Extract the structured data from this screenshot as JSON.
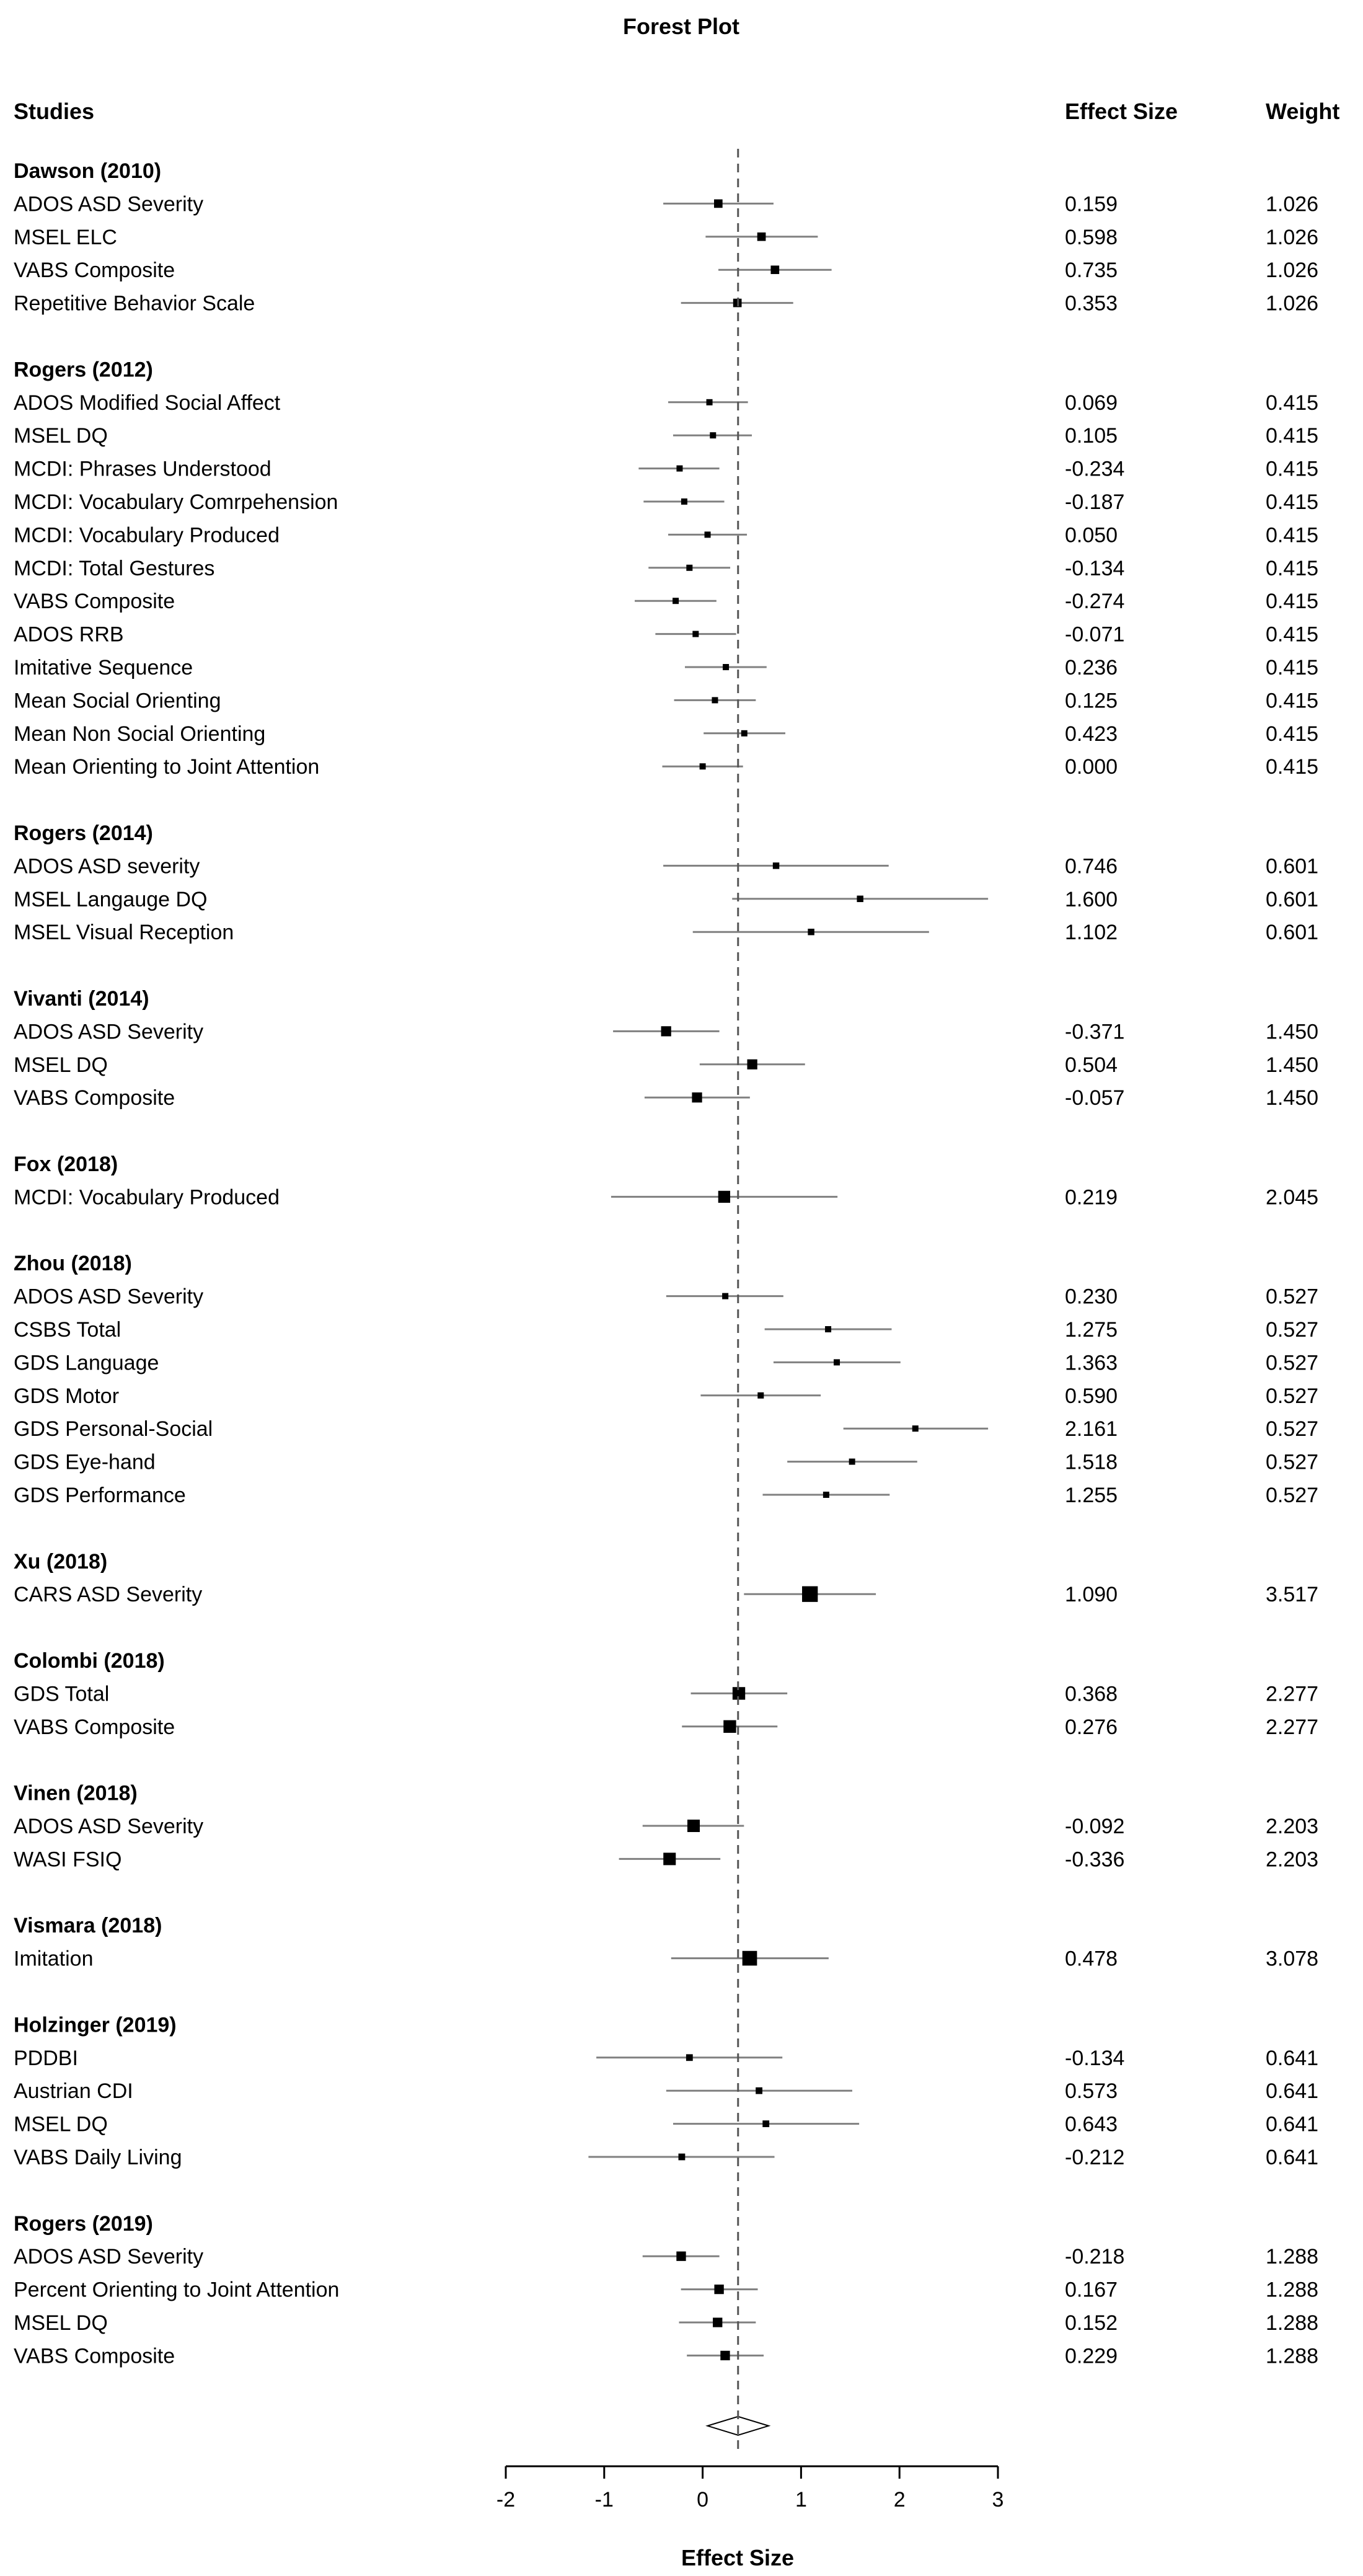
{
  "chart_data": {
    "type": "forest",
    "title": "Forest Plot",
    "xlabel": "Effect Size",
    "columns": {
      "studies": "Studies",
      "effect": "Effect Size",
      "weight": "Weight"
    },
    "xlim": [
      -2,
      3
    ],
    "ticks": [
      "-2",
      "-1",
      "0",
      "1",
      "2",
      "3"
    ],
    "pooled_estimate": 0.36,
    "pooled_ci": [
      0.05,
      0.67
    ],
    "colors": {
      "ink": "#000000",
      "ci_line": "#808080",
      "reference": "#555555"
    },
    "groups": [
      {
        "name": "Dawson (2010)",
        "rows": [
          {
            "label": "ADOS ASD Severity",
            "es": 0.159,
            "es_text": "0.159",
            "weight": 1.026,
            "weight_text": "1.026",
            "lo": -0.4,
            "hi": 0.72
          },
          {
            "label": "MSEL ELC",
            "es": 0.598,
            "es_text": "0.598",
            "weight": 1.026,
            "weight_text": "1.026",
            "lo": 0.03,
            "hi": 1.17
          },
          {
            "label": "VABS Composite",
            "es": 0.735,
            "es_text": "0.735",
            "weight": 1.026,
            "weight_text": "1.026",
            "lo": 0.16,
            "hi": 1.31
          },
          {
            "label": "Repetitive Behavior Scale",
            "es": 0.353,
            "es_text": "0.353",
            "weight": 1.026,
            "weight_text": "1.026",
            "lo": -0.22,
            "hi": 0.92
          }
        ]
      },
      {
        "name": "Rogers (2012)",
        "rows": [
          {
            "label": "ADOS Modified Social Affect",
            "es": 0.069,
            "es_text": "0.069",
            "weight": 0.415,
            "weight_text": "0.415",
            "lo": -0.35,
            "hi": 0.46
          },
          {
            "label": "MSEL DQ",
            "es": 0.105,
            "es_text": "0.105",
            "weight": 0.415,
            "weight_text": "0.415",
            "lo": -0.3,
            "hi": 0.5
          },
          {
            "label": "MCDI: Phrases Understood",
            "es": -0.234,
            "es_text": "-0.234",
            "weight": 0.415,
            "weight_text": "0.415",
            "lo": -0.65,
            "hi": 0.17
          },
          {
            "label": "MCDI: Vocabulary Comrpehension",
            "es": -0.187,
            "es_text": "-0.187",
            "weight": 0.415,
            "weight_text": "0.415",
            "lo": -0.6,
            "hi": 0.22
          },
          {
            "label": "MCDI: Vocabulary Produced",
            "es": 0.05,
            "es_text": "0.050",
            "weight": 0.415,
            "weight_text": "0.415",
            "lo": -0.35,
            "hi": 0.45
          },
          {
            "label": "MCDI: Total Gestures",
            "es": -0.134,
            "es_text": "-0.134",
            "weight": 0.415,
            "weight_text": "0.415",
            "lo": -0.55,
            "hi": 0.28
          },
          {
            "label": "VABS Composite",
            "es": -0.274,
            "es_text": "-0.274",
            "weight": 0.415,
            "weight_text": "0.415",
            "lo": -0.69,
            "hi": 0.14
          },
          {
            "label": "ADOS RRB",
            "es": -0.071,
            "es_text": "-0.071",
            "weight": 0.415,
            "weight_text": "0.415",
            "lo": -0.48,
            "hi": 0.34
          },
          {
            "label": "Imitative Sequence",
            "es": 0.236,
            "es_text": "0.236",
            "weight": 0.415,
            "weight_text": "0.415",
            "lo": -0.18,
            "hi": 0.65
          },
          {
            "label": "Mean Social Orienting",
            "es": 0.125,
            "es_text": "0.125",
            "weight": 0.415,
            "weight_text": "0.415",
            "lo": -0.29,
            "hi": 0.54
          },
          {
            "label": "Mean Non Social Orienting",
            "es": 0.423,
            "es_text": "0.423",
            "weight": 0.415,
            "weight_text": "0.415",
            "lo": 0.01,
            "hi": 0.84
          },
          {
            "label": "Mean Orienting to Joint Attention",
            "es": 0.0,
            "es_text": "0.000",
            "weight": 0.415,
            "weight_text": "0.415",
            "lo": -0.41,
            "hi": 0.41
          }
        ]
      },
      {
        "name": "Rogers (2014)",
        "rows": [
          {
            "label": "ADOS ASD severity",
            "es": 0.746,
            "es_text": "0.746",
            "weight": 0.601,
            "weight_text": "0.601",
            "lo": -0.4,
            "hi": 1.89
          },
          {
            "label": "MSEL Langauge DQ",
            "es": 1.6,
            "es_text": "1.600",
            "weight": 0.601,
            "weight_text": "0.601",
            "lo": 0.3,
            "hi": 2.9
          },
          {
            "label": "MSEL Visual Reception",
            "es": 1.102,
            "es_text": "1.102",
            "weight": 0.601,
            "weight_text": "0.601",
            "lo": -0.1,
            "hi": 2.3
          }
        ]
      },
      {
        "name": "Vivanti (2014)",
        "rows": [
          {
            "label": "ADOS ASD Severity",
            "es": -0.371,
            "es_text": "-0.371",
            "weight": 1.45,
            "weight_text": "1.450",
            "lo": -0.91,
            "hi": 0.17
          },
          {
            "label": "MSEL DQ",
            "es": 0.504,
            "es_text": "0.504",
            "weight": 1.45,
            "weight_text": "1.450",
            "lo": -0.03,
            "hi": 1.04
          },
          {
            "label": "VABS Composite",
            "es": -0.057,
            "es_text": "-0.057",
            "weight": 1.45,
            "weight_text": "1.450",
            "lo": -0.59,
            "hi": 0.48
          }
        ]
      },
      {
        "name": "Fox (2018)",
        "rows": [
          {
            "label": "MCDI: Vocabulary Produced",
            "es": 0.219,
            "es_text": "0.219",
            "weight": 2.045,
            "weight_text": "2.045",
            "lo": -0.93,
            "hi": 1.37
          }
        ]
      },
      {
        "name": "Zhou (2018)",
        "rows": [
          {
            "label": "ADOS ASD Severity",
            "es": 0.23,
            "es_text": "0.230",
            "weight": 0.527,
            "weight_text": "0.527",
            "lo": -0.37,
            "hi": 0.82
          },
          {
            "label": "CSBS Total",
            "es": 1.275,
            "es_text": "1.275",
            "weight": 0.527,
            "weight_text": "0.527",
            "lo": 0.63,
            "hi": 1.92
          },
          {
            "label": "GDS Language",
            "es": 1.363,
            "es_text": "1.363",
            "weight": 0.527,
            "weight_text": "0.527",
            "lo": 0.72,
            "hi": 2.01
          },
          {
            "label": "GDS Motor",
            "es": 0.59,
            "es_text": "0.590",
            "weight": 0.527,
            "weight_text": "0.527",
            "lo": -0.02,
            "hi": 1.2
          },
          {
            "label": "GDS Personal-Social",
            "es": 2.161,
            "es_text": "2.161",
            "weight": 0.527,
            "weight_text": "0.527",
            "lo": 1.43,
            "hi": 2.9
          },
          {
            "label": "GDS Eye-hand",
            "es": 1.518,
            "es_text": "1.518",
            "weight": 0.527,
            "weight_text": "0.527",
            "lo": 0.86,
            "hi": 2.18
          },
          {
            "label": "GDS Performance",
            "es": 1.255,
            "es_text": "1.255",
            "weight": 0.527,
            "weight_text": "0.527",
            "lo": 0.61,
            "hi": 1.9
          }
        ]
      },
      {
        "name": "Xu (2018)",
        "rows": [
          {
            "label": "CARS ASD Severity",
            "es": 1.09,
            "es_text": "1.090",
            "weight": 3.517,
            "weight_text": "3.517",
            "lo": 0.42,
            "hi": 1.76
          }
        ]
      },
      {
        "name": "Colombi (2018)",
        "rows": [
          {
            "label": "GDS Total",
            "es": 0.368,
            "es_text": "0.368",
            "weight": 2.277,
            "weight_text": "2.277",
            "lo": -0.12,
            "hi": 0.86
          },
          {
            "label": "VABS Composite",
            "es": 0.276,
            "es_text": "0.276",
            "weight": 2.277,
            "weight_text": "2.277",
            "lo": -0.21,
            "hi": 0.76
          }
        ]
      },
      {
        "name": "Vinen (2018)",
        "rows": [
          {
            "label": "ADOS ASD Severity",
            "es": -0.092,
            "es_text": "-0.092",
            "weight": 2.203,
            "weight_text": "2.203",
            "lo": -0.61,
            "hi": 0.42
          },
          {
            "label": "WASI FSIQ",
            "es": -0.336,
            "es_text": "-0.336",
            "weight": 2.203,
            "weight_text": "2.203",
            "lo": -0.85,
            "hi": 0.18
          }
        ]
      },
      {
        "name": "Vismara (2018)",
        "rows": [
          {
            "label": "Imitation",
            "es": 0.478,
            "es_text": "0.478",
            "weight": 3.078,
            "weight_text": "3.078",
            "lo": -0.32,
            "hi": 1.28
          }
        ]
      },
      {
        "name": "Holzinger (2019)",
        "rows": [
          {
            "label": "PDDBI",
            "es": -0.134,
            "es_text": "-0.134",
            "weight": 0.641,
            "weight_text": "0.641",
            "lo": -1.08,
            "hi": 0.81
          },
          {
            "label": "Austrian CDI",
            "es": 0.573,
            "es_text": "0.573",
            "weight": 0.641,
            "weight_text": "0.641",
            "lo": -0.37,
            "hi": 1.52
          },
          {
            "label": "MSEL DQ",
            "es": 0.643,
            "es_text": "0.643",
            "weight": 0.641,
            "weight_text": "0.641",
            "lo": -0.3,
            "hi": 1.59
          },
          {
            "label": "VABS Daily Living",
            "es": -0.212,
            "es_text": "-0.212",
            "weight": 0.641,
            "weight_text": "0.641",
            "lo": -1.16,
            "hi": 0.73
          }
        ]
      },
      {
        "name": "Rogers (2019)",
        "rows": [
          {
            "label": "ADOS ASD Severity",
            "es": -0.218,
            "es_text": "-0.218",
            "weight": 1.288,
            "weight_text": "1.288",
            "lo": -0.61,
            "hi": 0.17
          },
          {
            "label": "Percent Orienting to Joint Attention",
            "es": 0.167,
            "es_text": "0.167",
            "weight": 1.288,
            "weight_text": "1.288",
            "lo": -0.22,
            "hi": 0.56
          },
          {
            "label": "MSEL DQ",
            "es": 0.152,
            "es_text": "0.152",
            "weight": 1.288,
            "weight_text": "1.288",
            "lo": -0.24,
            "hi": 0.54
          },
          {
            "label": "VABS Composite",
            "es": 0.229,
            "es_text": "0.229",
            "weight": 1.288,
            "weight_text": "1.288",
            "lo": -0.16,
            "hi": 0.62
          }
        ]
      }
    ]
  }
}
